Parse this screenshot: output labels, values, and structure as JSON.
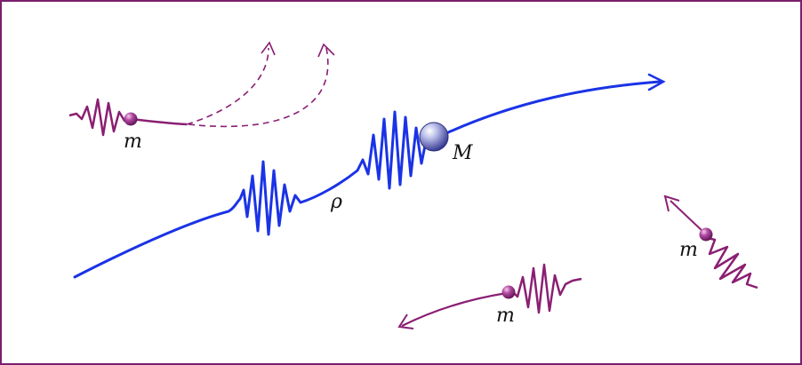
{
  "colors": {
    "frame": "#7a1f6e",
    "heavy_trajectory": "#1a33e6",
    "light_trajectory": "#8a1f73",
    "label": "#111111"
  },
  "labels": {
    "heavy_mass": "M",
    "density": "ρ",
    "light_mass_1": "m",
    "light_mass_2": "m",
    "light_mass_3": "m"
  }
}
